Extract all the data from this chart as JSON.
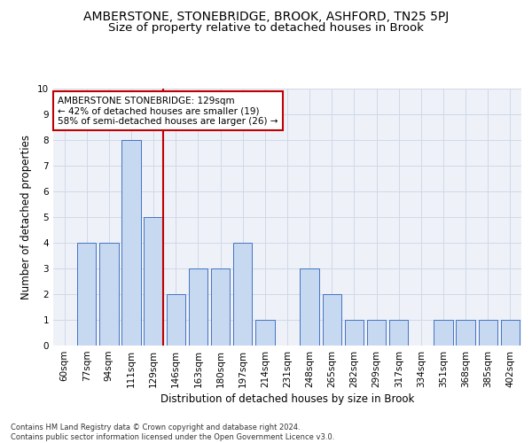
{
  "title": "AMBERSTONE, STONEBRIDGE, BROOK, ASHFORD, TN25 5PJ",
  "subtitle": "Size of property relative to detached houses in Brook",
  "xlabel": "Distribution of detached houses by size in Brook",
  "ylabel": "Number of detached properties",
  "footer_line1": "Contains HM Land Registry data © Crown copyright and database right 2024.",
  "footer_line2": "Contains public sector information licensed under the Open Government Licence v3.0.",
  "annotation_line1": "AMBERSTONE STONEBRIDGE: 129sqm",
  "annotation_line2": "← 42% of detached houses are smaller (19)",
  "annotation_line3": "58% of semi-detached houses are larger (26) →",
  "bar_labels": [
    "60sqm",
    "77sqm",
    "94sqm",
    "111sqm",
    "129sqm",
    "146sqm",
    "163sqm",
    "180sqm",
    "197sqm",
    "214sqm",
    "231sqm",
    "248sqm",
    "265sqm",
    "282sqm",
    "299sqm",
    "317sqm",
    "334sqm",
    "351sqm",
    "368sqm",
    "385sqm",
    "402sqm"
  ],
  "bar_values": [
    0,
    4,
    4,
    8,
    5,
    2,
    3,
    3,
    4,
    1,
    0,
    3,
    2,
    1,
    1,
    1,
    0,
    1,
    1,
    1,
    1
  ],
  "bar_color": "#c6d9f1",
  "bar_edge_color": "#4472c4",
  "marker_index": 4,
  "marker_color": "#c00000",
  "ylim": [
    0,
    10
  ],
  "yticks": [
    0,
    1,
    2,
    3,
    4,
    5,
    6,
    7,
    8,
    9,
    10
  ],
  "grid_color": "#d0d8e8",
  "bg_color": "#eef2f8",
  "annotation_box_color": "#c00000",
  "title_fontsize": 10,
  "subtitle_fontsize": 9.5,
  "axis_fontsize": 8.5,
  "tick_fontsize": 7.5,
  "annotation_fontsize": 7.5,
  "footer_fontsize": 6.0
}
